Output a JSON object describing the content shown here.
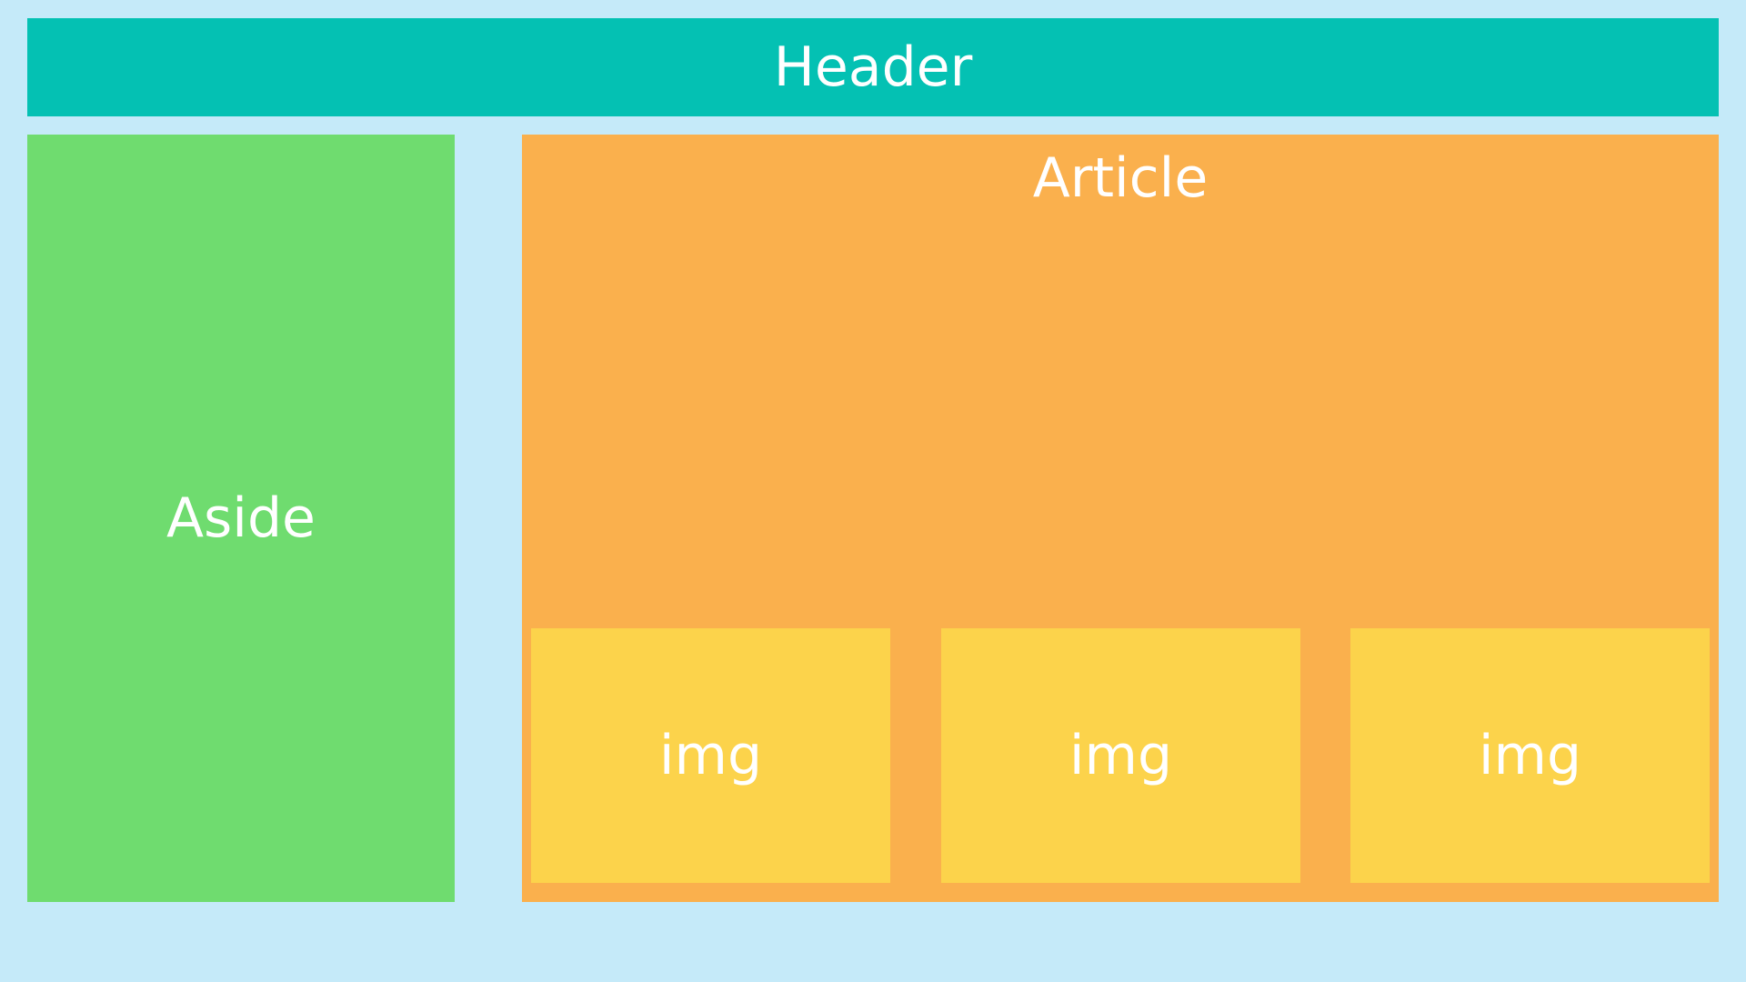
{
  "header": {
    "label": "Header"
  },
  "aside": {
    "label": "Aside"
  },
  "article": {
    "label": "Article",
    "images": [
      {
        "label": "img"
      },
      {
        "label": "img"
      },
      {
        "label": "img"
      }
    ]
  },
  "colors": {
    "background": "#c5eaf9",
    "header": "#04c1b3",
    "aside": "#6fdc6f",
    "article": "#fab04d",
    "img": "#fcd34b",
    "text": "#ffffff"
  }
}
